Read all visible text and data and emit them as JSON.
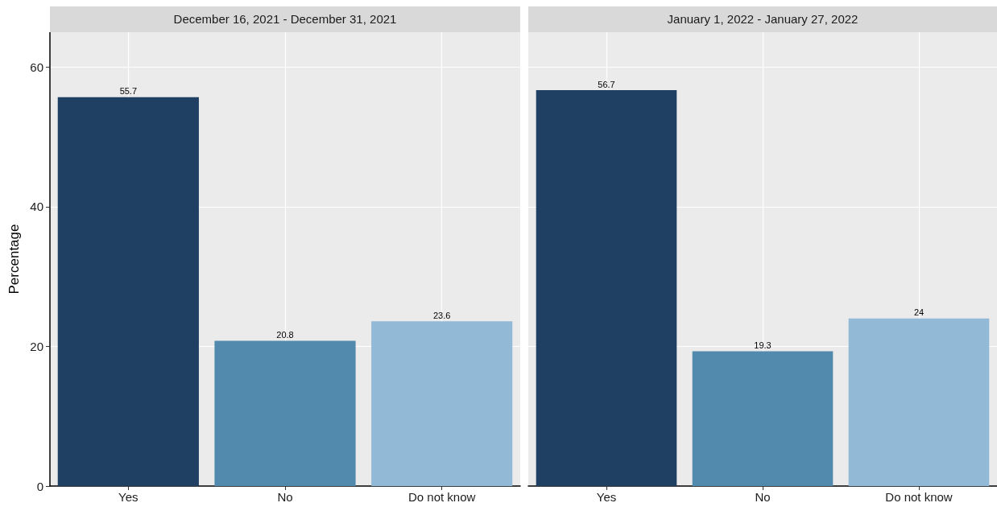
{
  "chart_data": [
    {
      "type": "bar",
      "title": "December 16, 2021 - December 31, 2021",
      "ylabel": "Percentage",
      "categories": [
        "Yes",
        "No",
        "Do not know"
      ],
      "values": [
        55.7,
        20.8,
        23.6
      ],
      "colors": [
        "#1f3f63",
        "#528aae",
        "#92b9d6"
      ],
      "ylim": [
        0,
        65
      ],
      "yticks": [
        0,
        20,
        40,
        60
      ],
      "grid": true,
      "data_labels": true
    },
    {
      "type": "bar",
      "title": "January 1, 2022 - January 27, 2022",
      "categories": [
        "Yes",
        "No",
        "Do not know"
      ],
      "values": [
        56.7,
        19.3,
        24
      ],
      "colors": [
        "#1f3f63",
        "#528aae",
        "#92b9d6"
      ],
      "ylim": [
        0,
        65
      ],
      "yticks": [
        0,
        20,
        40,
        60
      ],
      "grid": true,
      "data_labels": true,
      "tick_labels": "x"
    }
  ]
}
